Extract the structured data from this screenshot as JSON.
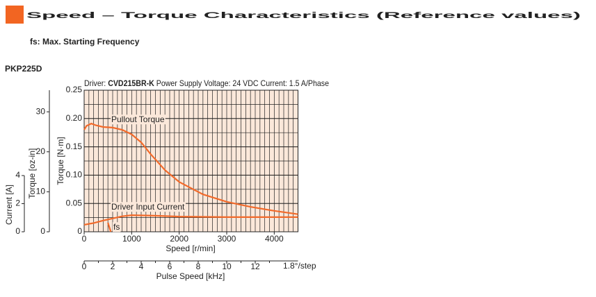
{
  "chart_data": {
    "type": "line",
    "title": "Speed – Torque Characteristics (Reference values)",
    "subtitle": "fs: Max. Starting Frequency",
    "model": "PKP225D",
    "conditions": [
      "Driver:",
      "CVD215BR-K",
      "Power Supply Voltage: 24 VDC",
      "Current: 1.5 A/Phase"
    ],
    "xlabel": "Speed [r/min]",
    "ylabel": "Torque [N·m]",
    "y2label": "Torque [oz-in]",
    "y3label": "Current [A]",
    "x2label": "Pulse Speed [kHz]",
    "x2note": "1.8°/step",
    "xlim": [
      0,
      4500
    ],
    "xticks": [
      0,
      1000,
      2000,
      3000,
      4000
    ],
    "x_minor_grid": 100,
    "ylim": [
      0,
      0.25
    ],
    "yticks": [
      0,
      0.05,
      {
        "value": 0.1,
        "label": "0.10"
      },
      0.15,
      {
        "value": 0.2,
        "label": "0.20"
      },
      0.25
    ],
    "y_minor_grid": 0.025,
    "y2lim": [
      0,
      35.4
    ],
    "y2ticks": [
      0,
      10,
      20,
      30
    ],
    "y3lim": [
      0,
      4
    ],
    "y3ticks": [
      0,
      2,
      4
    ],
    "x2lim": [
      0,
      15
    ],
    "x2ticks": [
      0,
      2,
      4,
      6,
      8,
      10,
      12
    ],
    "x2minorticks": [
      1,
      3,
      5,
      7,
      9,
      11,
      13
    ],
    "background": "#fbe8da",
    "series": [
      {
        "name": "Pullout Torque",
        "color": "#f26a2a",
        "axis": "y",
        "x": [
          0,
          50,
          150,
          250,
          400,
          600,
          800,
          1000,
          1200,
          1400,
          1700,
          2000,
          2500,
          3000,
          3500,
          4000,
          4500
        ],
        "values": [
          0.18,
          0.187,
          0.191,
          0.188,
          0.185,
          0.184,
          0.18,
          0.172,
          0.158,
          0.137,
          0.109,
          0.088,
          0.066,
          0.053,
          0.044,
          0.037,
          0.031
        ]
      },
      {
        "name": "Driver Input Current",
        "color": "#f26a2a",
        "axis": "y3",
        "x": [
          0,
          200,
          400,
          600,
          800,
          1000,
          1500,
          2000,
          3000,
          4000,
          4500
        ],
        "values": [
          0.5,
          0.62,
          0.8,
          0.95,
          1.1,
          1.18,
          1.14,
          1.08,
          1.04,
          1.04,
          1.04
        ]
      },
      {
        "name": "fs",
        "color": "#f26a2a",
        "axis": "y",
        "x": [
          500,
          560
        ],
        "values": [
          0.016,
          0
        ]
      }
    ]
  }
}
